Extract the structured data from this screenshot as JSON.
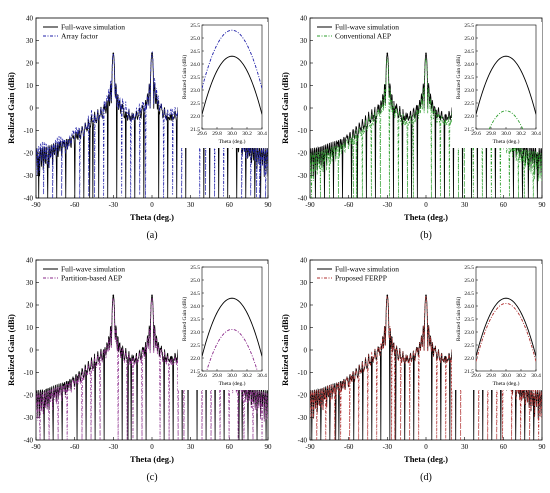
{
  "chart_data": [
    {
      "type": "line",
      "panel_label": "(a)",
      "xlabel": "Theta (deg.)",
      "ylabel": "Realized Gain (dBi)",
      "xlim": [
        -90,
        90
      ],
      "ylim": [
        -40,
        40
      ],
      "xticks": [
        "-90",
        "-60",
        "-30",
        "0",
        "30",
        "60",
        "90"
      ],
      "yticks": [
        "40",
        "30",
        "20",
        "10",
        "0",
        "-10",
        "-20",
        "-30",
        "-40"
      ],
      "legend_position": "top-left",
      "series": [
        {
          "name": "Full-wave simulation",
          "color": "#000000",
          "style": "solid"
        },
        {
          "name": "Array factor",
          "color": "#1f1fa8",
          "style": "dashdot"
        }
      ],
      "peaks": [
        {
          "x": -30,
          "y": 24.3
        },
        {
          "x": 0,
          "y": 24.3
        },
        {
          "x": 30,
          "y": 24.3
        }
      ],
      "comparison_peak": 25.3,
      "inset": {
        "xlabel": "Theta (deg.)",
        "ylabel": "Realized Gain (dBi)",
        "xlim": [
          29.6,
          30.4
        ],
        "ylim": [
          21.5,
          25.5
        ],
        "xticks": [
          "29.6",
          "29.8",
          "30.0",
          "30.2",
          "30.4"
        ],
        "yticks": [
          "25.5",
          "25.0",
          "24.5",
          "24.0",
          "23.5",
          "23.0",
          "22.5",
          "22.0",
          "21.5"
        ],
        "ref_peak": 24.3,
        "cmp_peak": 25.3
      }
    },
    {
      "type": "line",
      "panel_label": "(b)",
      "xlabel": "Theta (deg.)",
      "ylabel": "Realized Gain (dBi)",
      "xlim": [
        -90,
        90
      ],
      "ylim": [
        -40,
        40
      ],
      "xticks": [
        "-90",
        "-60",
        "-30",
        "0",
        "30",
        "60",
        "90"
      ],
      "yticks": [
        "40",
        "30",
        "20",
        "10",
        "0",
        "-10",
        "-20",
        "-30",
        "-40"
      ],
      "legend_position": "top-left",
      "series": [
        {
          "name": "Full-wave simulation",
          "color": "#000000",
          "style": "solid"
        },
        {
          "name": "Conventional AEP",
          "color": "#2e9e2e",
          "style": "dashdot"
        }
      ],
      "peaks": [
        {
          "x": -30,
          "y": 24.3
        },
        {
          "x": 0,
          "y": 24.3
        },
        {
          "x": 30,
          "y": 24.3
        }
      ],
      "comparison_peak": 22.2,
      "inset": {
        "xlabel": "Theta (deg.)",
        "ylabel": "Realized Gain (dBi)",
        "xlim": [
          29.6,
          30.4
        ],
        "ylim": [
          21.5,
          25.5
        ],
        "xticks": [
          "29.6",
          "29.8",
          "30.0",
          "30.2",
          "30.4"
        ],
        "yticks": [
          "25.5",
          "25.0",
          "24.5",
          "24.0",
          "23.5",
          "23.0",
          "22.5",
          "22.0",
          "21.5"
        ],
        "ref_peak": 24.3,
        "cmp_peak": 22.2
      }
    },
    {
      "type": "line",
      "panel_label": "(c)",
      "xlabel": "Theta (deg.)",
      "ylabel": "Realized Gain (dBi)",
      "xlim": [
        -90,
        90
      ],
      "ylim": [
        -40,
        40
      ],
      "xticks": [
        "-90",
        "-60",
        "-30",
        "0",
        "30",
        "60",
        "90"
      ],
      "yticks": [
        "40",
        "30",
        "20",
        "10",
        "0",
        "-10",
        "-20",
        "-30",
        "-40"
      ],
      "legend_position": "top-left",
      "series": [
        {
          "name": "Full-wave simulation",
          "color": "#000000",
          "style": "solid"
        },
        {
          "name": "Partition-based AEP",
          "color": "#8a2a8a",
          "style": "dashdot"
        }
      ],
      "peaks": [
        {
          "x": -30,
          "y": 24.3
        },
        {
          "x": 0,
          "y": 24.3
        },
        {
          "x": 30,
          "y": 24.3
        }
      ],
      "comparison_peak": 23.1,
      "inset": {
        "xlabel": "Theta (deg.)",
        "ylabel": "Realized Gain (dBi)",
        "xlim": [
          29.6,
          30.4
        ],
        "ylim": [
          21.5,
          25.5
        ],
        "xticks": [
          "29.6",
          "29.8",
          "30.0",
          "30.2",
          "30.4"
        ],
        "yticks": [
          "25.5",
          "25.0",
          "24.5",
          "24.0",
          "23.5",
          "23.0",
          "22.5",
          "22.0",
          "21.5"
        ],
        "ref_peak": 24.3,
        "cmp_peak": 23.1
      }
    },
    {
      "type": "line",
      "panel_label": "(d)",
      "xlabel": "Theta (deg.)",
      "ylabel": "Realized Gain (dBi)",
      "xlim": [
        -90,
        90
      ],
      "ylim": [
        -40,
        40
      ],
      "xticks": [
        "-90",
        "-60",
        "-30",
        "0",
        "30",
        "60",
        "90"
      ],
      "yticks": [
        "40",
        "30",
        "20",
        "10",
        "0",
        "-10",
        "-20",
        "-30",
        "-40"
      ],
      "legend_position": "top-left",
      "series": [
        {
          "name": "Full-wave simulation",
          "color": "#000000",
          "style": "solid"
        },
        {
          "name": "Proposed FERPP",
          "color": "#b03030",
          "style": "dashdot"
        }
      ],
      "peaks": [
        {
          "x": -30,
          "y": 24.3
        },
        {
          "x": 0,
          "y": 24.3
        },
        {
          "x": 30,
          "y": 24.3
        }
      ],
      "comparison_peak": 24.1,
      "inset": {
        "xlabel": "Theta (deg.)",
        "ylabel": "Realized Gain (dBi)",
        "xlim": [
          29.6,
          30.4
        ],
        "ylim": [
          21.5,
          25.5
        ],
        "xticks": [
          "29.6",
          "29.8",
          "30.0",
          "30.2",
          "30.4"
        ],
        "yticks": [
          "25.5",
          "25.0",
          "24.5",
          "24.0",
          "23.5",
          "23.0",
          "22.5",
          "22.0",
          "21.5"
        ],
        "ref_peak": 24.3,
        "cmp_peak": 24.1
      }
    }
  ]
}
